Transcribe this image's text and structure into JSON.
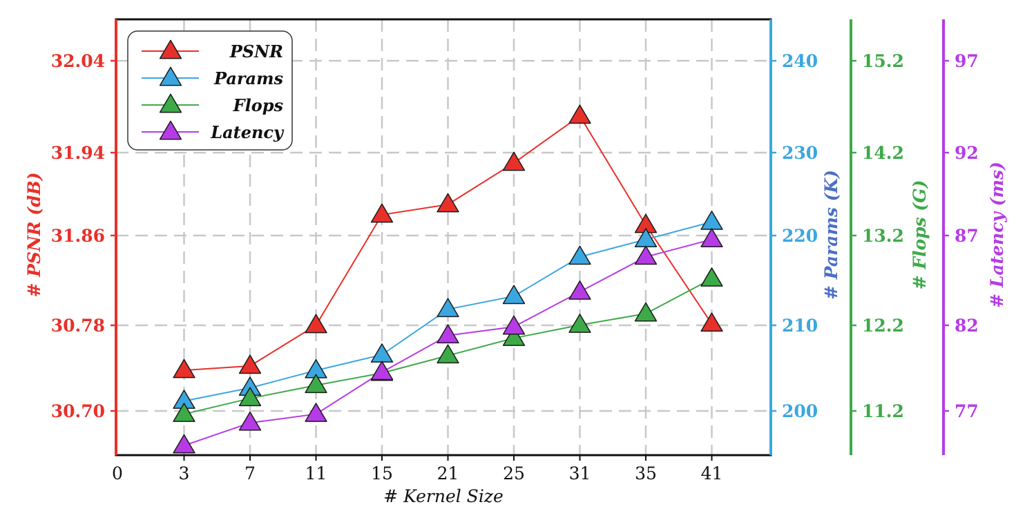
{
  "chart_data": {
    "type": "line",
    "x_categories": [
      "3",
      "7",
      "11",
      "15",
      "21",
      "25",
      "31",
      "35",
      "41"
    ],
    "x_origin_label": "0",
    "xlabel": "# Kernel Size",
    "series": [
      {
        "name": "PSNR",
        "color": "#e8302a",
        "axis": "psnr",
        "values": [
          30.738,
          30.742,
          30.78,
          31.88,
          31.89,
          31.93,
          31.98,
          31.87,
          30.798
        ]
      },
      {
        "name": "Params",
        "color": "#3ba7e0",
        "axis": "params",
        "values": [
          201.5,
          203,
          205,
          206.8,
          212,
          213.5,
          218,
          220,
          222
        ]
      },
      {
        "name": "Flops",
        "color": "#3daa48",
        "axis": "flops",
        "values": [
          11.2,
          11.38,
          11.53,
          11.67,
          11.87,
          12.07,
          12.22,
          12.35,
          12.75
        ]
      },
      {
        "name": "Latency",
        "color": "#b63be6",
        "axis": "latency",
        "values": [
          75.2,
          76.5,
          77,
          79.4,
          81.5,
          82,
          84,
          86,
          87
        ]
      }
    ],
    "axes": {
      "psnr": {
        "label": "# PSNR (dB)",
        "color": "#e8302a",
        "ticks": [
          "30.70",
          "30.78",
          "31.86",
          "31.94",
          "32.04"
        ]
      },
      "params": {
        "label": "# Params (K)",
        "color": "#3ba7e0",
        "title_color": "#4a6fc8",
        "ticks": [
          200,
          210,
          220,
          230,
          240
        ],
        "ylim": [
          195.3,
          245.2
        ]
      },
      "flops": {
        "label": "# Flops (G)",
        "color": "#3daa48",
        "ticks": [
          "11.2",
          "12.2",
          "13.2",
          "14.2",
          "15.2"
        ],
        "ylim": [
          10.73,
          15.72
        ]
      },
      "latency": {
        "label": "# Latency (ms)",
        "color": "#b63be6",
        "ticks": [
          77,
          82,
          87,
          92,
          97
        ],
        "ylim": [
          74.65,
          99.6
        ]
      }
    },
    "grid": true,
    "legend_position": "top-left"
  }
}
